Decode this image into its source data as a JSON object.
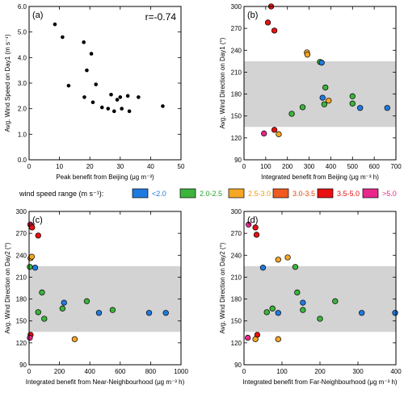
{
  "legend": {
    "title": "wind speed range (m s⁻¹):",
    "items": [
      {
        "label": "<2.0",
        "color": "#1f7ae0",
        "text_color": "#1f7ae0"
      },
      {
        "label": "2.0-2.5",
        "color": "#3cb43c",
        "text_color": "#2aa22a"
      },
      {
        "label": "2.5-3.0",
        "color": "#f5a623",
        "text_color": "#f09a10"
      },
      {
        "label": "3.0-3.5",
        "color": "#f05a1e",
        "text_color": "#e04a10"
      },
      {
        "label": "3.5-5.0",
        "color": "#e81010",
        "text_color": "#e81010"
      },
      {
        "label": ">5.0",
        "color": "#e8288a",
        "text_color": "#e8288a"
      }
    ]
  },
  "chart_data": [
    {
      "type": "scatter",
      "panel": "(a)",
      "annotation": "r=-0.74",
      "xlabel": "Peak benefit from Beijing (μg m⁻³)",
      "ylabel": "Avg. Wind Speed on Day1 (m s⁻¹)",
      "xlim": [
        0,
        50
      ],
      "ylim": [
        0,
        6
      ],
      "xticks": [
        0,
        10,
        20,
        30,
        40,
        50
      ],
      "yticks": [
        0.0,
        1.0,
        2.0,
        3.0,
        4.0,
        5.0,
        6.0
      ],
      "points": [
        {
          "x": 8.5,
          "y": 5.3
        },
        {
          "x": 11.0,
          "y": 4.8
        },
        {
          "x": 13.0,
          "y": 2.9
        },
        {
          "x": 18.0,
          "y": 4.6
        },
        {
          "x": 18.2,
          "y": 2.45
        },
        {
          "x": 19.0,
          "y": 3.5
        },
        {
          "x": 20.5,
          "y": 4.15
        },
        {
          "x": 21.0,
          "y": 2.25
        },
        {
          "x": 22.0,
          "y": 2.95
        },
        {
          "x": 24.0,
          "y": 2.05
        },
        {
          "x": 26.0,
          "y": 2.0
        },
        {
          "x": 27.0,
          "y": 2.55
        },
        {
          "x": 28.0,
          "y": 1.9
        },
        {
          "x": 29.0,
          "y": 2.35
        },
        {
          "x": 30.0,
          "y": 2.45
        },
        {
          "x": 30.5,
          "y": 2.0
        },
        {
          "x": 32.5,
          "y": 2.5
        },
        {
          "x": 33.0,
          "y": 1.9
        },
        {
          "x": 36.0,
          "y": 2.45
        },
        {
          "x": 44.0,
          "y": 2.1
        }
      ]
    },
    {
      "type": "scatter",
      "panel": "(b)",
      "xlabel": "Integrated benefit from Beijing (μg m⁻³ h)",
      "ylabel": "Avg. Wind Direction on Day1 (°)",
      "xlim": [
        0,
        700
      ],
      "ylim": [
        90,
        300
      ],
      "xticks": [
        0,
        100,
        200,
        300,
        400,
        500,
        600,
        700
      ],
      "yticks": [
        90,
        120,
        150,
        180,
        210,
        240,
        270,
        300
      ],
      "band": [
        135,
        225
      ],
      "points": [
        {
          "x": 125,
          "y": 300,
          "c": "#e81010"
        },
        {
          "x": 110,
          "y": 278,
          "c": "#e81010"
        },
        {
          "x": 140,
          "y": 267,
          "c": "#e81010"
        },
        {
          "x": 290,
          "y": 237,
          "c": "#f5a623"
        },
        {
          "x": 292,
          "y": 234,
          "c": "#f5a623"
        },
        {
          "x": 350,
          "y": 224,
          "c": "#3cb43c"
        },
        {
          "x": 358,
          "y": 223,
          "c": "#1f7ae0"
        },
        {
          "x": 375,
          "y": 189,
          "c": "#3cb43c"
        },
        {
          "x": 362,
          "y": 175,
          "c": "#1f7ae0"
        },
        {
          "x": 370,
          "y": 166,
          "c": "#3cb43c"
        },
        {
          "x": 390,
          "y": 171,
          "c": "#f5a623"
        },
        {
          "x": 500,
          "y": 177,
          "c": "#3cb43c"
        },
        {
          "x": 500,
          "y": 167,
          "c": "#3cb43c"
        },
        {
          "x": 535,
          "y": 161,
          "c": "#1f7ae0"
        },
        {
          "x": 660,
          "y": 161,
          "c": "#1f7ae0"
        },
        {
          "x": 270,
          "y": 162,
          "c": "#3cb43c"
        },
        {
          "x": 220,
          "y": 153,
          "c": "#3cb43c"
        },
        {
          "x": 140,
          "y": 131,
          "c": "#e81010"
        },
        {
          "x": 160,
          "y": 125,
          "c": "#f5a623"
        },
        {
          "x": 92,
          "y": 126,
          "c": "#e8288a"
        }
      ]
    },
    {
      "type": "scatter",
      "panel": "(c)",
      "xlabel": "Integrated benefit from Near-Neighbourhood (μg m⁻³ h)",
      "ylabel": "Avg. Wind Direction on Day2 (°)",
      "xlim": [
        0,
        1000
      ],
      "ylim": [
        90,
        300
      ],
      "xticks": [
        0,
        200,
        400,
        600,
        800,
        1000
      ],
      "yticks": [
        90,
        120,
        150,
        180,
        210,
        240,
        270,
        300
      ],
      "band": [
        135,
        225
      ],
      "points": [
        {
          "x": 8,
          "y": 282,
          "c": "#e8288a"
        },
        {
          "x": 15,
          "y": 280,
          "c": "#e81010"
        },
        {
          "x": 20,
          "y": 278,
          "c": "#e81010"
        },
        {
          "x": 60,
          "y": 267,
          "c": "#e81010"
        },
        {
          "x": 10,
          "y": 236,
          "c": "#f5a623"
        },
        {
          "x": 18,
          "y": 238,
          "c": "#f5a623"
        },
        {
          "x": 5,
          "y": 224,
          "c": "#3cb43c"
        },
        {
          "x": 40,
          "y": 223,
          "c": "#1f7ae0"
        },
        {
          "x": 85,
          "y": 189,
          "c": "#3cb43c"
        },
        {
          "x": 230,
          "y": 175,
          "c": "#1f7ae0"
        },
        {
          "x": 380,
          "y": 177,
          "c": "#3cb43c"
        },
        {
          "x": 220,
          "y": 167,
          "c": "#3cb43c"
        },
        {
          "x": 60,
          "y": 162,
          "c": "#3cb43c"
        },
        {
          "x": 100,
          "y": 153,
          "c": "#3cb43c"
        },
        {
          "x": 460,
          "y": 161,
          "c": "#1f7ae0"
        },
        {
          "x": 550,
          "y": 165,
          "c": "#3cb43c"
        },
        {
          "x": 790,
          "y": 161,
          "c": "#1f7ae0"
        },
        {
          "x": 900,
          "y": 161,
          "c": "#1f7ae0"
        },
        {
          "x": 10,
          "y": 131,
          "c": "#e81010"
        },
        {
          "x": 5,
          "y": 127,
          "c": "#e8288a"
        },
        {
          "x": 300,
          "y": 125,
          "c": "#f5a623"
        }
      ]
    },
    {
      "type": "scatter",
      "panel": "(d)",
      "xlabel": "Integrated benefit from Far-Neighbourhood (μg m⁻³ h)",
      "ylabel": "Avg. Wind Direction on Day2 (°)",
      "xlim": [
        0,
        400
      ],
      "ylim": [
        90,
        300
      ],
      "xticks": [
        0,
        100,
        200,
        300,
        400
      ],
      "yticks": [
        90,
        120,
        150,
        180,
        210,
        240,
        270,
        300
      ],
      "band": [
        135,
        225
      ],
      "points": [
        {
          "x": 12,
          "y": 282,
          "c": "#e8288a"
        },
        {
          "x": 30,
          "y": 278,
          "c": "#e81010"
        },
        {
          "x": 33,
          "y": 268,
          "c": "#e81010"
        },
        {
          "x": 90,
          "y": 234,
          "c": "#f5a623"
        },
        {
          "x": 115,
          "y": 237,
          "c": "#f5a623"
        },
        {
          "x": 50,
          "y": 223,
          "c": "#1f7ae0"
        },
        {
          "x": 135,
          "y": 224,
          "c": "#3cb43c"
        },
        {
          "x": 140,
          "y": 189,
          "c": "#3cb43c"
        },
        {
          "x": 155,
          "y": 175,
          "c": "#1f7ae0"
        },
        {
          "x": 240,
          "y": 177,
          "c": "#3cb43c"
        },
        {
          "x": 75,
          "y": 167,
          "c": "#3cb43c"
        },
        {
          "x": 60,
          "y": 162,
          "c": "#3cb43c"
        },
        {
          "x": 90,
          "y": 161,
          "c": "#1f7ae0"
        },
        {
          "x": 155,
          "y": 165,
          "c": "#3cb43c"
        },
        {
          "x": 200,
          "y": 153,
          "c": "#3cb43c"
        },
        {
          "x": 310,
          "y": 161,
          "c": "#1f7ae0"
        },
        {
          "x": 398,
          "y": 161,
          "c": "#1f7ae0"
        },
        {
          "x": 35,
          "y": 131,
          "c": "#e81010"
        },
        {
          "x": 10,
          "y": 127,
          "c": "#e8288a"
        },
        {
          "x": 30,
          "y": 125,
          "c": "#f5a623"
        },
        {
          "x": 90,
          "y": 125,
          "c": "#f5a623"
        }
      ]
    }
  ]
}
